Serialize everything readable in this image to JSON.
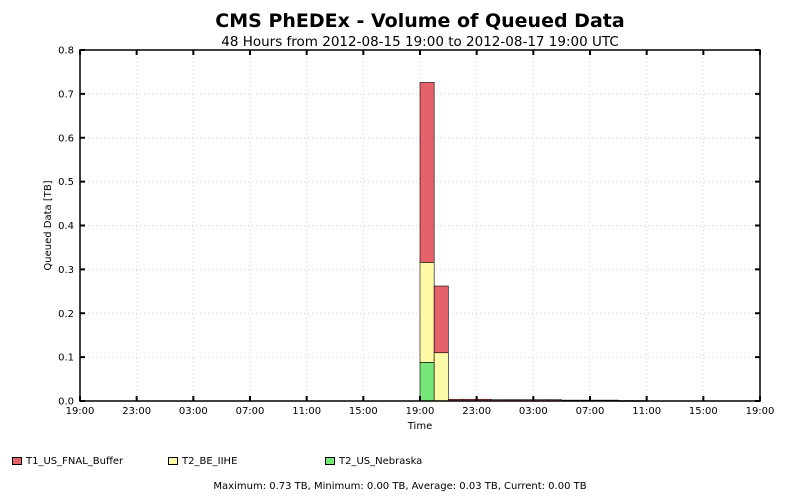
{
  "chart_data": {
    "type": "bar",
    "stacked": true,
    "title": "CMS PhEDEx - Volume of Queued Data",
    "subtitle": "48 Hours from 2012-08-15 19:00 to 2012-08-17 19:00 UTC",
    "xlabel": "Time",
    "ylabel": "Queued Data [TB]",
    "ylim": [
      0,
      0.8
    ],
    "yticks": [
      "0.0",
      "0.1",
      "0.2",
      "0.3",
      "0.4",
      "0.5",
      "0.6",
      "0.7",
      "0.8"
    ],
    "xtick_labels": [
      "19:00",
      "23:00",
      "03:00",
      "07:00",
      "11:00",
      "15:00",
      "19:00",
      "23:00",
      "03:00",
      "07:00",
      "11:00",
      "15:00",
      "19:00"
    ],
    "grid": true,
    "legend_position": "bottom",
    "categories": [
      "2012-08-15 19:00",
      "2012-08-15 20:00",
      "2012-08-15 21:00",
      "2012-08-15 22:00",
      "2012-08-15 23:00",
      "2012-08-16 00:00",
      "2012-08-16 01:00",
      "2012-08-16 02:00",
      "2012-08-16 03:00",
      "2012-08-16 04:00",
      "2012-08-16 05:00",
      "2012-08-16 06:00",
      "2012-08-16 07:00",
      "2012-08-16 08:00",
      "2012-08-16 09:00",
      "2012-08-16 10:00",
      "2012-08-16 11:00",
      "2012-08-16 12:00",
      "2012-08-16 13:00",
      "2012-08-16 14:00",
      "2012-08-16 15:00",
      "2012-08-16 16:00",
      "2012-08-16 17:00",
      "2012-08-16 18:00",
      "2012-08-16 19:00",
      "2012-08-16 20:00",
      "2012-08-16 21:00",
      "2012-08-16 22:00",
      "2012-08-16 23:00",
      "2012-08-17 00:00",
      "2012-08-17 01:00",
      "2012-08-17 02:00",
      "2012-08-17 03:00",
      "2012-08-17 04:00",
      "2012-08-17 05:00",
      "2012-08-17 06:00",
      "2012-08-17 07:00",
      "2012-08-17 08:00",
      "2012-08-17 09:00",
      "2012-08-17 10:00",
      "2012-08-17 11:00",
      "2012-08-17 12:00",
      "2012-08-17 13:00",
      "2012-08-17 14:00",
      "2012-08-17 15:00",
      "2012-08-17 16:00",
      "2012-08-17 17:00",
      "2012-08-17 18:00"
    ],
    "series": [
      {
        "name": "T2_US_Nebraska",
        "color": "#77e77a",
        "values": [
          0,
          0,
          0,
          0,
          0,
          0,
          0,
          0,
          0,
          0,
          0,
          0,
          0,
          0,
          0,
          0,
          0,
          0,
          0,
          0,
          0,
          0,
          0,
          0,
          0.088,
          0,
          0,
          0,
          0,
          0,
          0,
          0,
          0,
          0,
          0,
          0,
          0,
          0,
          0,
          0,
          0,
          0,
          0,
          0,
          0,
          0,
          0,
          0
        ]
      },
      {
        "name": "T2_BE_IIHE",
        "color": "#fef9a7",
        "values": [
          0,
          0,
          0,
          0,
          0,
          0,
          0,
          0,
          0,
          0,
          0,
          0,
          0,
          0,
          0,
          0,
          0,
          0,
          0,
          0,
          0,
          0,
          0,
          0,
          0.228,
          0.11,
          0,
          0,
          0,
          0,
          0,
          0,
          0,
          0,
          0,
          0,
          0,
          0,
          0,
          0,
          0,
          0,
          0,
          0,
          0,
          0,
          0,
          0
        ]
      },
      {
        "name": "T1_US_FNAL_Buffer",
        "color": "#e6626a",
        "values": [
          0,
          0,
          0,
          0,
          0,
          0,
          0,
          0,
          0,
          0,
          0,
          0,
          0,
          0,
          0,
          0,
          0,
          0,
          0,
          0,
          0,
          0,
          0,
          0,
          0.41,
          0.152,
          0.004,
          0.004,
          0.004,
          0.003,
          0.003,
          0.003,
          0.003,
          0.003,
          0.002,
          0.002,
          0.002,
          0.002,
          0.001,
          0.001,
          0,
          0,
          0,
          0,
          0,
          0,
          0,
          0
        ]
      }
    ],
    "legend": [
      {
        "name": "T1_US_FNAL_Buffer",
        "color": "#e6626a"
      },
      {
        "name": "T2_BE_IIHE",
        "color": "#fef9a7"
      },
      {
        "name": "T2_US_Nebraska",
        "color": "#77e77a"
      }
    ],
    "stats": "Maximum: 0.73 TB, Minimum: 0.00 TB, Average: 0.03 TB, Current: 0.00 TB"
  }
}
